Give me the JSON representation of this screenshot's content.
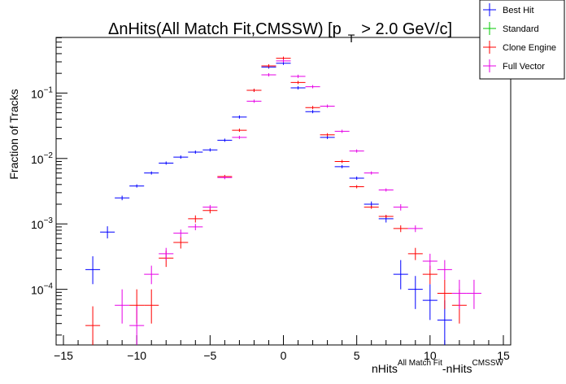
{
  "colors": {
    "best_hit": "#0000ff",
    "standard": "#00c800",
    "clone_engine": "#ff0000",
    "full_vector": "#e600e6"
  },
  "chart_data": {
    "type": "scatter",
    "title_main": "ΔnHits(All Match Fit,CMSSW) [p",
    "title_sub": "T",
    "title_tail": "> 2.0 GeV/c]",
    "xlabel_a": "nHits",
    "xlabel_a_sup": "All Match Fit",
    "xlabel_b": "-nHits",
    "xlabel_b_sup": "CMSSW",
    "ylabel": "Fraction of Tracks",
    "xlim": [
      -15.5,
      15.5
    ],
    "ylim_log10": [
      -4.85,
      -0.15
    ],
    "log_y": true,
    "x_ticks": [
      {
        "v": -15,
        "label": "−15"
      },
      {
        "v": -10,
        "label": "−10"
      },
      {
        "v": -5,
        "label": "−5"
      },
      {
        "v": 0,
        "label": "0"
      },
      {
        "v": 5,
        "label": "5"
      },
      {
        "v": 10,
        "label": "10"
      },
      {
        "v": 15,
        "label": "15"
      }
    ],
    "y_ticks": [
      {
        "v": 0.1,
        "base": "10",
        "exp": "−1"
      },
      {
        "v": 0.01,
        "base": "10",
        "exp": "−2"
      },
      {
        "v": 0.001,
        "base": "10",
        "exp": "−3"
      },
      {
        "v": 0.0001,
        "base": "10",
        "exp": "−4"
      }
    ],
    "legend": [
      {
        "key": "best_hit",
        "label": "Best Hit"
      },
      {
        "key": "standard",
        "label": "Standard"
      },
      {
        "key": "clone_engine",
        "label": "Clone Engine"
      },
      {
        "key": "full_vector",
        "label": "Full Vector"
      }
    ],
    "series": [
      {
        "name": "Best Hit",
        "key": "best_hit",
        "points": [
          {
            "x": -13,
            "y": 0.0002,
            "ylo": 0.00012,
            "yhi": 0.00032
          },
          {
            "x": -12,
            "y": 0.00075,
            "ylo": 0.0006,
            "yhi": 0.00092
          },
          {
            "x": -11,
            "y": 0.0025,
            "ylo": 0.0023,
            "yhi": 0.0027
          },
          {
            "x": -10,
            "y": 0.0038
          },
          {
            "x": -9,
            "y": 0.006
          },
          {
            "x": -8,
            "y": 0.0085
          },
          {
            "x": -7,
            "y": 0.0105
          },
          {
            "x": -6,
            "y": 0.0125
          },
          {
            "x": -5,
            "y": 0.0135
          },
          {
            "x": -4,
            "y": 0.019
          },
          {
            "x": -3,
            "y": 0.043
          },
          {
            "x": -2,
            "y": 0.11
          },
          {
            "x": -1,
            "y": 0.25
          },
          {
            "x": 0,
            "y": 0.285
          },
          {
            "x": 1,
            "y": 0.12
          },
          {
            "x": 2,
            "y": 0.052
          },
          {
            "x": 3,
            "y": 0.021
          },
          {
            "x": 4,
            "y": 0.0075
          },
          {
            "x": 5,
            "y": 0.005
          },
          {
            "x": 6,
            "y": 0.002,
            "ylo": 0.0018,
            "yhi": 0.0022
          },
          {
            "x": 7,
            "y": 0.0012,
            "ylo": 0.00105,
            "yhi": 0.00135
          },
          {
            "x": 8,
            "y": 0.00017,
            "ylo": 0.0001,
            "yhi": 0.00028
          },
          {
            "x": 9,
            "y": 0.0001,
            "ylo": 5e-05,
            "yhi": 0.00016
          },
          {
            "x": 10,
            "y": 6.8e-05,
            "ylo": 3.4e-05,
            "yhi": 0.00012
          },
          {
            "x": 11,
            "y": 3.4e-05,
            "ylo": 1.4e-05,
            "yhi": 6.8e-05
          }
        ]
      },
      {
        "name": "Standard",
        "key": "standard",
        "points": []
      },
      {
        "name": "Clone Engine",
        "key": "clone_engine",
        "points": [
          {
            "x": -13,
            "y": 2.8e-05,
            "ylo": 1.4e-05,
            "yhi": 5.5e-05
          },
          {
            "x": -10,
            "y": 5.7e-05,
            "ylo": 3e-05,
            "yhi": 0.0001
          },
          {
            "x": -9,
            "y": 5.7e-05,
            "ylo": 3e-05,
            "yhi": 0.0001
          },
          {
            "x": -8,
            "y": 0.0003,
            "ylo": 0.00022,
            "yhi": 0.00039
          },
          {
            "x": -7,
            "y": 0.00052,
            "ylo": 0.00042,
            "yhi": 0.00063
          },
          {
            "x": -6,
            "y": 0.0012,
            "ylo": 0.00105,
            "yhi": 0.00135
          },
          {
            "x": -5,
            "y": 0.0016,
            "ylo": 0.00145,
            "yhi": 0.00175
          },
          {
            "x": -4,
            "y": 0.0053
          },
          {
            "x": -3,
            "y": 0.027
          },
          {
            "x": -2,
            "y": 0.11
          },
          {
            "x": -1,
            "y": 0.26
          },
          {
            "x": 0,
            "y": 0.34
          },
          {
            "x": 1,
            "y": 0.145
          },
          {
            "x": 2,
            "y": 0.06
          },
          {
            "x": 3,
            "y": 0.023
          },
          {
            "x": 4,
            "y": 0.009
          },
          {
            "x": 5,
            "y": 0.0037
          },
          {
            "x": 6,
            "y": 0.0018
          },
          {
            "x": 7,
            "y": 0.0013
          },
          {
            "x": 8,
            "y": 0.00085,
            "ylo": 0.00075,
            "yhi": 0.00095
          },
          {
            "x": 9,
            "y": 0.00035,
            "ylo": 0.00028,
            "yhi": 0.00043
          },
          {
            "x": 10,
            "y": 0.00017,
            "ylo": 0.00012,
            "yhi": 0.00023
          },
          {
            "x": 11,
            "y": 8.7e-05,
            "ylo": 5e-05,
            "yhi": 0.00014
          },
          {
            "x": 12,
            "y": 5.7e-05,
            "ylo": 3e-05,
            "yhi": 0.0001
          }
        ]
      },
      {
        "name": "Full Vector",
        "key": "full_vector",
        "points": [
          {
            "x": -11,
            "y": 5.7e-05,
            "ylo": 3e-05,
            "yhi": 0.0001
          },
          {
            "x": -10,
            "y": 2.8e-05,
            "ylo": 1.4e-05,
            "yhi": 5.5e-05
          },
          {
            "x": -9,
            "y": 0.00017,
            "ylo": 0.00012,
            "yhi": 0.00023
          },
          {
            "x": -8,
            "y": 0.00035,
            "ylo": 0.00028,
            "yhi": 0.00043
          },
          {
            "x": -7,
            "y": 0.00072,
            "ylo": 0.00062,
            "yhi": 0.00082
          },
          {
            "x": -6,
            "y": 0.0009,
            "ylo": 0.0008,
            "yhi": 0.001
          },
          {
            "x": -5,
            "y": 0.0018,
            "ylo": 0.00165,
            "yhi": 0.00195
          },
          {
            "x": -4,
            "y": 0.0051
          },
          {
            "x": -3,
            "y": 0.021
          },
          {
            "x": -2,
            "y": 0.075
          },
          {
            "x": -1,
            "y": 0.19
          },
          {
            "x": 0,
            "y": 0.31
          },
          {
            "x": 1,
            "y": 0.18
          },
          {
            "x": 2,
            "y": 0.125
          },
          {
            "x": 3,
            "y": 0.063
          },
          {
            "x": 4,
            "y": 0.026
          },
          {
            "x": 5,
            "y": 0.013
          },
          {
            "x": 6,
            "y": 0.006
          },
          {
            "x": 7,
            "y": 0.0033
          },
          {
            "x": 8,
            "y": 0.0018,
            "ylo": 0.0016,
            "yhi": 0.002
          },
          {
            "x": 9,
            "y": 0.00085,
            "ylo": 0.00075,
            "yhi": 0.00095
          },
          {
            "x": 10,
            "y": 0.00027,
            "ylo": 0.0002,
            "yhi": 0.00035
          },
          {
            "x": 11,
            "y": 0.0002,
            "ylo": 0.00014,
            "yhi": 0.00028
          },
          {
            "x": 12,
            "y": 8.7e-05,
            "ylo": 5e-05,
            "yhi": 0.00014
          },
          {
            "x": 13,
            "y": 8.7e-05,
            "ylo": 5e-05,
            "yhi": 0.00014
          }
        ]
      }
    ]
  }
}
